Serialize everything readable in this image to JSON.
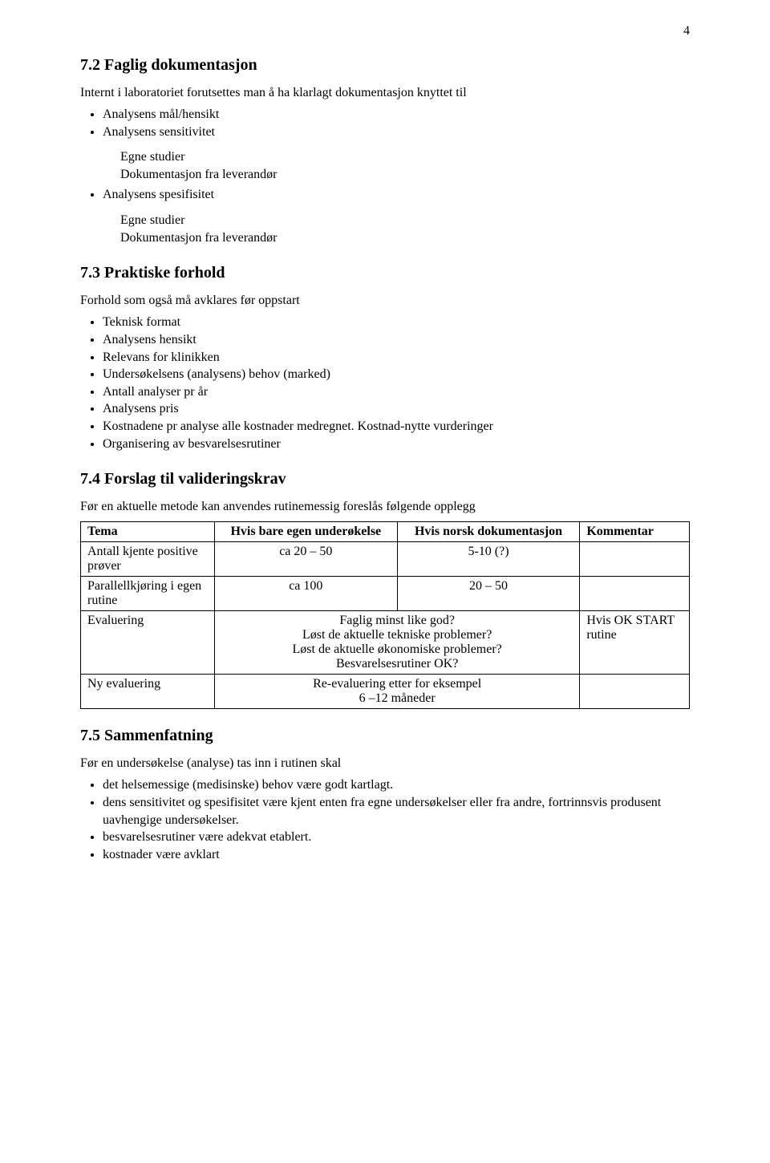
{
  "pageNumber": "4",
  "sections": {
    "s72": {
      "heading": "7.2   Faglig dokumentasjon",
      "intro": "Internt i laboratoriet forutsettes man å ha klarlagt dokumentasjon knyttet til",
      "bullets": {
        "b1": "Analysens mål/hensikt",
        "b2": "Analysens sensitivitet",
        "b2a": "Egne studier",
        "b2b": "Dokumentasjon fra leverandør",
        "b3": "Analysens spesifisitet",
        "b3a": "Egne studier",
        "b3b": "Dokumentasjon fra leverandør"
      }
    },
    "s73": {
      "heading": "7.3   Praktiske forhold",
      "intro": "Forhold som også må avklares før oppstart",
      "bullets": {
        "b1": "Teknisk format",
        "b2": "Analysens hensikt",
        "b3": "Relevans for klinikken",
        "b4": "Undersøkelsens (analysens) behov (marked)",
        "b5": "Antall analyser pr år",
        "b6": "Analysens pris",
        "b7": "Kostnadene pr analyse alle kostnader medregnet. Kostnad-nytte vurderinger",
        "b8": "Organisering av besvarelsesrutiner"
      }
    },
    "s74": {
      "heading": "7.4   Forslag til valideringskrav",
      "intro": "Før en aktuelle metode kan anvendes rutinemessig foreslås følgende opplegg",
      "table": {
        "headers": {
          "h1": "Tema",
          "h2": "Hvis bare egen underøkelse",
          "h3": "Hvis norsk dokumentasjon",
          "h4": "Kommentar"
        },
        "rows": {
          "r1": {
            "c1": "Antall kjente positive prøver",
            "c2": "ca 20 – 50",
            "c3": "5-10 (?)",
            "c4": ""
          },
          "r2": {
            "c1": "Parallellkjøring i egen rutine",
            "c2": "ca 100",
            "c3": "20 – 50",
            "c4": ""
          },
          "r3": {
            "c1": "Evaluering",
            "c23_l1": "Faglig minst like god?",
            "c23_l2": "Løst de aktuelle tekniske problemer?",
            "c23_l3": "Løst de aktuelle økonomiske problemer?",
            "c23_l4": "Besvarelsesrutiner OK?",
            "c4": "Hvis OK START rutine"
          },
          "r4": {
            "c1": "Ny evaluering",
            "c23_l1": "Re-evaluering etter for eksempel",
            "c23_l2": "6 –12 måneder",
            "c4": ""
          }
        }
      }
    },
    "s75": {
      "heading": "7.5   Sammenfatning",
      "intro": "Før en undersøkelse (analyse) tas inn i  rutinen skal",
      "bullets": {
        "b1": "det helsemessige (medisinske) behov være godt kartlagt.",
        "b2": "dens sensitivitet og spesifisitet være kjent enten fra egne undersøkelser eller fra andre, fortrinnsvis produsent uavhengige undersøkelser.",
        "b3": "besvarelsesrutiner være adekvat etablert.",
        "b4": "kostnader være avklart"
      }
    }
  }
}
